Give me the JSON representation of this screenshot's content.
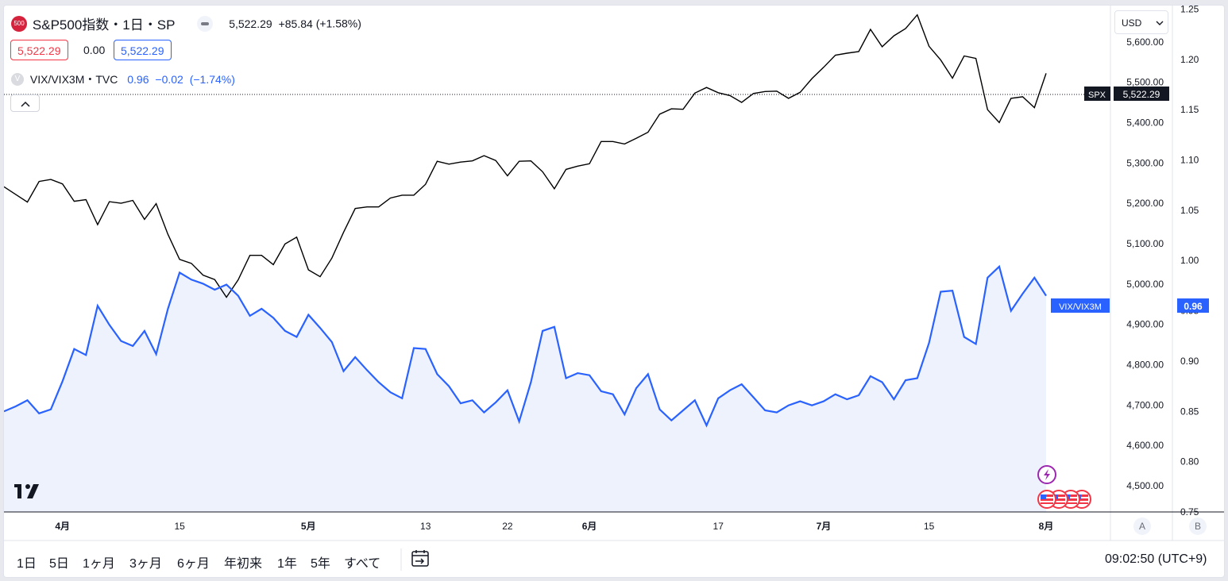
{
  "header": {
    "symbol_badge": "500",
    "symbol_title": "S&P500指数・1日・SP",
    "last_price": "5,522.29",
    "change": "+85.84",
    "change_pct": "(+1.58%)",
    "bid": "5,522.29",
    "spread": "0.00",
    "ask": "5,522.29",
    "compare_symbol": "VIX/VIX3M・TVC",
    "compare_value": "0.96",
    "compare_change": "−0.02",
    "compare_change_pct": "(−1.74%)"
  },
  "currency": "USD",
  "price_labels": {
    "spx_tag": "SPX",
    "spx_value": "5,522.29",
    "vix_tag": "VIX/VIX3M",
    "vix_value": "0.96"
  },
  "axis_buttons": [
    "A",
    "B"
  ],
  "timeframes": [
    "1日",
    "5日",
    "1ヶ月",
    "3ヶ月",
    "6ヶ月",
    "年初来",
    "1年",
    "5年",
    "すべて"
  ],
  "clock": "09:02:50 (UTC+9)",
  "colors": {
    "spx_line": "#000000",
    "vix_line": "#2962ff",
    "vix_fill": "#eef2fd",
    "badge": "#d6233d",
    "negative": "#f23645",
    "positive": "#2962ff"
  },
  "icons": [
    "tradingview-logo-icon",
    "lightning-icon",
    "us-flag-icon",
    "calendar-range-icon",
    "chevron-up-icon",
    "chevron-down-icon",
    "eye-icon"
  ],
  "chart_data": {
    "type": "line",
    "x_tick_labels": [
      "4月",
      "15",
      "5月",
      "13",
      "22",
      "6月",
      "17",
      "7月",
      "15",
      "8月"
    ],
    "left_axis_ticks": [
      "5,600.00",
      "5,500.00",
      "5,400.00",
      "5,300.00",
      "5,200.00",
      "5,100.00",
      "5,000.00",
      "4,900.00",
      "4,800.00",
      "4,700.00",
      "4,600.00",
      "4,500.00"
    ],
    "right_axis_ticks": [
      "1.25",
      "1.20",
      "1.15",
      "1.10",
      "1.05",
      "1.00",
      "0.95",
      "0.90",
      "0.85",
      "0.80",
      "0.75"
    ],
    "ylim_price": [
      4435,
      5690
    ],
    "ylim_ratio": [
      0.75,
      1.2535
    ],
    "series": [
      {
        "name": "S&P500指数",
        "axis": "price",
        "values": [
          5241,
          5222,
          5203,
          5254,
          5259,
          5248,
          5205,
          5209,
          5147,
          5204,
          5200,
          5207,
          5160,
          5199,
          5123,
          5061,
          5051,
          5022,
          5011,
          4967,
          5010,
          5071,
          5071,
          5048,
          5099,
          5116,
          5035,
          5018,
          5064,
          5128,
          5187,
          5191,
          5191,
          5213,
          5220,
          5220,
          5247,
          5304,
          5297,
          5302,
          5305,
          5318,
          5306,
          5268,
          5304,
          5305,
          5278,
          5236,
          5284,
          5292,
          5298,
          5353,
          5353,
          5347,
          5361,
          5376,
          5421,
          5434,
          5433,
          5473,
          5487,
          5474,
          5467,
          5450,
          5472,
          5477,
          5478,
          5460,
          5475,
          5509,
          5537,
          5567,
          5572,
          5576,
          5631,
          5588,
          5615,
          5633,
          5667,
          5589,
          5555,
          5510,
          5565,
          5559,
          5432,
          5400,
          5460,
          5464,
          5437,
          5522
        ]
      },
      {
        "name": "VIX/VIX3M",
        "axis": "ratio",
        "values": [
          0.85,
          0.855,
          0.861,
          0.848,
          0.852,
          0.88,
          0.912,
          0.906,
          0.955,
          0.936,
          0.92,
          0.915,
          0.93,
          0.907,
          0.952,
          0.988,
          0.981,
          0.977,
          0.971,
          0.976,
          0.965,
          0.945,
          0.952,
          0.943,
          0.93,
          0.924,
          0.946,
          0.933,
          0.919,
          0.89,
          0.904,
          0.891,
          0.879,
          0.869,
          0.863,
          0.913,
          0.912,
          0.887,
          0.875,
          0.858,
          0.861,
          0.849,
          0.859,
          0.871,
          0.84,
          0.879,
          0.93,
          0.934,
          0.883,
          0.888,
          0.886,
          0.87,
          0.867,
          0.847,
          0.873,
          0.887,
          0.852,
          0.841,
          0.851,
          0.861,
          0.836,
          0.863,
          0.871,
          0.877,
          0.864,
          0.851,
          0.849,
          0.856,
          0.86,
          0.856,
          0.86,
          0.867,
          0.862,
          0.866,
          0.885,
          0.879,
          0.862,
          0.881,
          0.883,
          0.918,
          0.969,
          0.97,
          0.924,
          0.917,
          0.983,
          0.994,
          0.95,
          0.967,
          0.983,
          0.965
        ]
      }
    ]
  }
}
